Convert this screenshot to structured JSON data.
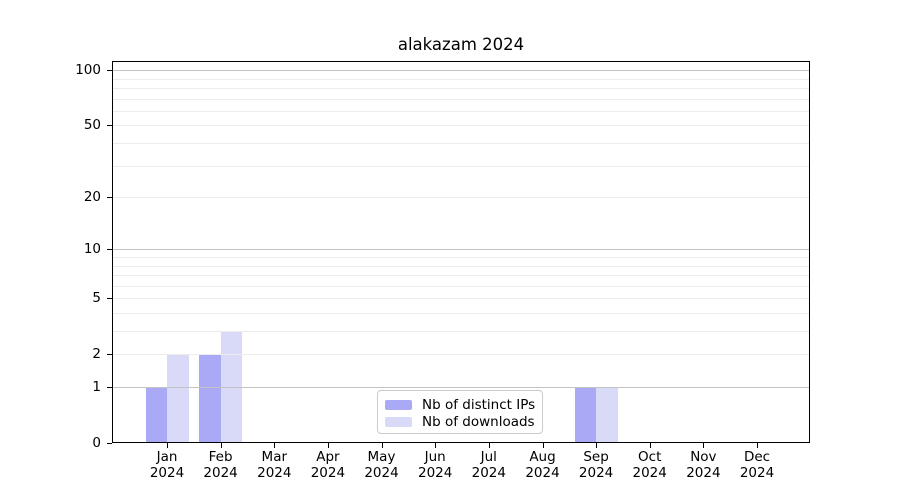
{
  "figure": {
    "title": "alakazam 2024"
  },
  "chart_data": {
    "type": "bar",
    "title": "alakazam 2024",
    "categories": [
      "Jan",
      "Feb",
      "Mar",
      "Apr",
      "May",
      "Jun",
      "Jul",
      "Aug",
      "Sep",
      "Oct",
      "Nov",
      "Dec"
    ],
    "category_year": "2024",
    "series": [
      {
        "name": "Nb of distinct IPs",
        "color": "#a9a9f5",
        "values": [
          1,
          2,
          0,
          0,
          0,
          0,
          0,
          0,
          1,
          0,
          0,
          0
        ]
      },
      {
        "name": "Nb of downloads",
        "color": "#d9d9f8",
        "values": [
          2,
          3,
          0,
          0,
          0,
          0,
          0,
          0,
          1,
          0,
          0,
          0
        ]
      }
    ],
    "yscale": "log(1+y)",
    "ylim": [
      0,
      112
    ],
    "y_tick_labels": [
      100,
      50,
      20,
      10,
      5,
      2,
      1,
      0
    ],
    "y_major_gridlines": [
      1,
      10,
      100
    ],
    "y_minor_gridlines": [
      2,
      3,
      4,
      5,
      6,
      7,
      8,
      9,
      20,
      30,
      40,
      50,
      60,
      70,
      80,
      90
    ],
    "grid": true,
    "legend_position": "lower center",
    "xlabel": "",
    "ylabel": ""
  }
}
